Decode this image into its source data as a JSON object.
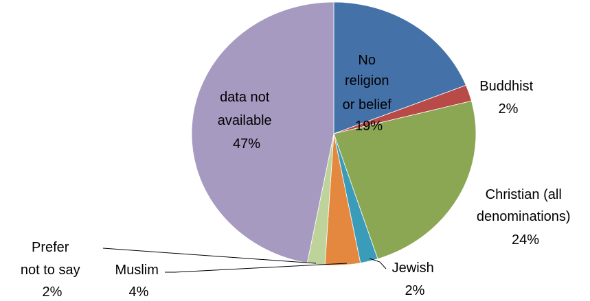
{
  "chart_data": {
    "type": "pie",
    "title": "",
    "slices": [
      {
        "label": "No religion or belief",
        "percent_label": "19%",
        "value": 19,
        "color": "#4472A8"
      },
      {
        "label": "Buddhist",
        "percent_label": "2%",
        "value": 2,
        "color": "#B84A47"
      },
      {
        "label": "Christian (all denominations)",
        "percent_label": "24%",
        "value": 24,
        "color": "#8CA754"
      },
      {
        "label": "Jewish",
        "percent_label": "2%",
        "value": 2,
        "color": "#3B9CB9"
      },
      {
        "label": "Muslim",
        "percent_label": "4%",
        "value": 4,
        "color": "#E4883F"
      },
      {
        "label": "Prefer not to say",
        "percent_label": "2%",
        "value": 2,
        "color": "#BED39A"
      },
      {
        "label": "data not available",
        "percent_label": "47%",
        "value": 47,
        "color": "#A69AC0"
      }
    ],
    "label_lines": {
      "no_religion": [
        "No",
        "religion",
        "or belief"
      ],
      "buddhist": [
        "Buddhist"
      ],
      "christian": [
        "Christian (all",
        "denominations)"
      ],
      "jewish": [
        "Jewish"
      ],
      "muslim": [
        "Muslim"
      ],
      "prefer": [
        "Prefer",
        "not to say"
      ],
      "na": [
        "data not",
        "available"
      ]
    },
    "legend": "none"
  }
}
